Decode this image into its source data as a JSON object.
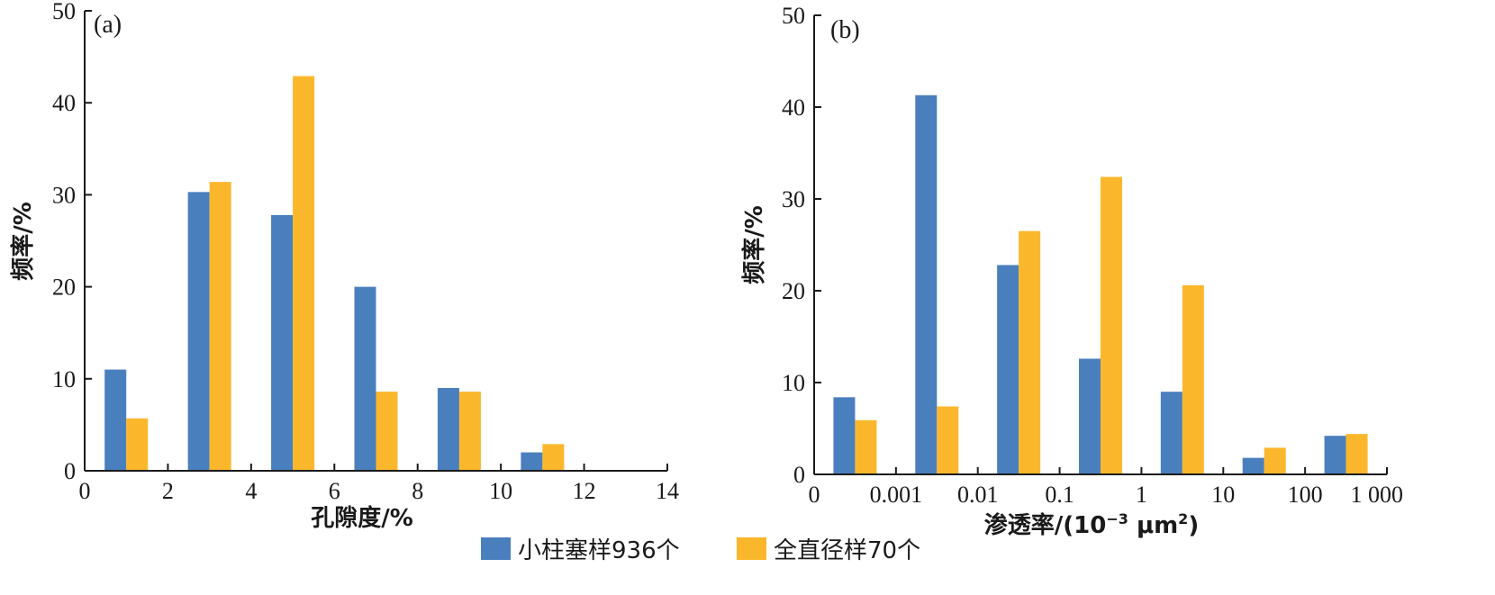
{
  "colors": {
    "series1": "#4a7fbd",
    "series2": "#fbb72c"
  },
  "legend": {
    "items": [
      {
        "label": "小柱塞样936个",
        "color": "#4a7fbd"
      },
      {
        "label": "全直径样70个",
        "color": "#fbb72c"
      }
    ]
  },
  "chart_data": [
    {
      "panel": "(a)",
      "type": "bar",
      "xlabel": "孔隙度/%",
      "ylabel": "频率/%",
      "x_ticks": [
        "0",
        "2",
        "4",
        "6",
        "8",
        "10",
        "12",
        "14"
      ],
      "y_ticks": [
        "0",
        "10",
        "20",
        "30",
        "40",
        "50"
      ],
      "xlim": [
        0,
        14
      ],
      "ylim": [
        0,
        50
      ],
      "categories": [
        "1",
        "3",
        "5",
        "7",
        "9",
        "11"
      ],
      "x_centers": [
        1,
        3,
        5,
        7,
        9,
        11
      ],
      "series": [
        {
          "name": "小柱塞样936个",
          "values": [
            11.0,
            30.3,
            27.8,
            20.0,
            9.0,
            2.0
          ]
        },
        {
          "name": "全直径样70个",
          "values": [
            5.7,
            31.4,
            42.9,
            8.6,
            8.6,
            2.9
          ]
        }
      ]
    },
    {
      "panel": "(b)",
      "type": "bar",
      "xlabel_main": "渗透率/(10",
      "xlabel_sup1": "−3",
      "xlabel_mid": " μm",
      "xlabel_sup2": "2",
      "xlabel_end": ")",
      "ylabel": "频率/%",
      "x_ticks": [
        "0",
        "0.001",
        "0.01",
        "0.1",
        "1",
        "10",
        "100",
        "1 000"
      ],
      "y_ticks": [
        "0",
        "10",
        "20",
        "30",
        "40",
        "50"
      ],
      "ylim": [
        0,
        50
      ],
      "categories": [
        "<0.001",
        "0.001–0.01",
        "0.01–0.1",
        "0.1–1",
        "1–10",
        "10–100",
        "100–1000"
      ],
      "series": [
        {
          "name": "小柱塞样936个",
          "values": [
            8.4,
            41.3,
            22.8,
            12.6,
            9.0,
            1.8,
            4.2
          ]
        },
        {
          "name": "全直径样70个",
          "values": [
            5.9,
            7.4,
            26.5,
            32.4,
            20.6,
            2.9,
            4.4
          ]
        }
      ]
    }
  ]
}
